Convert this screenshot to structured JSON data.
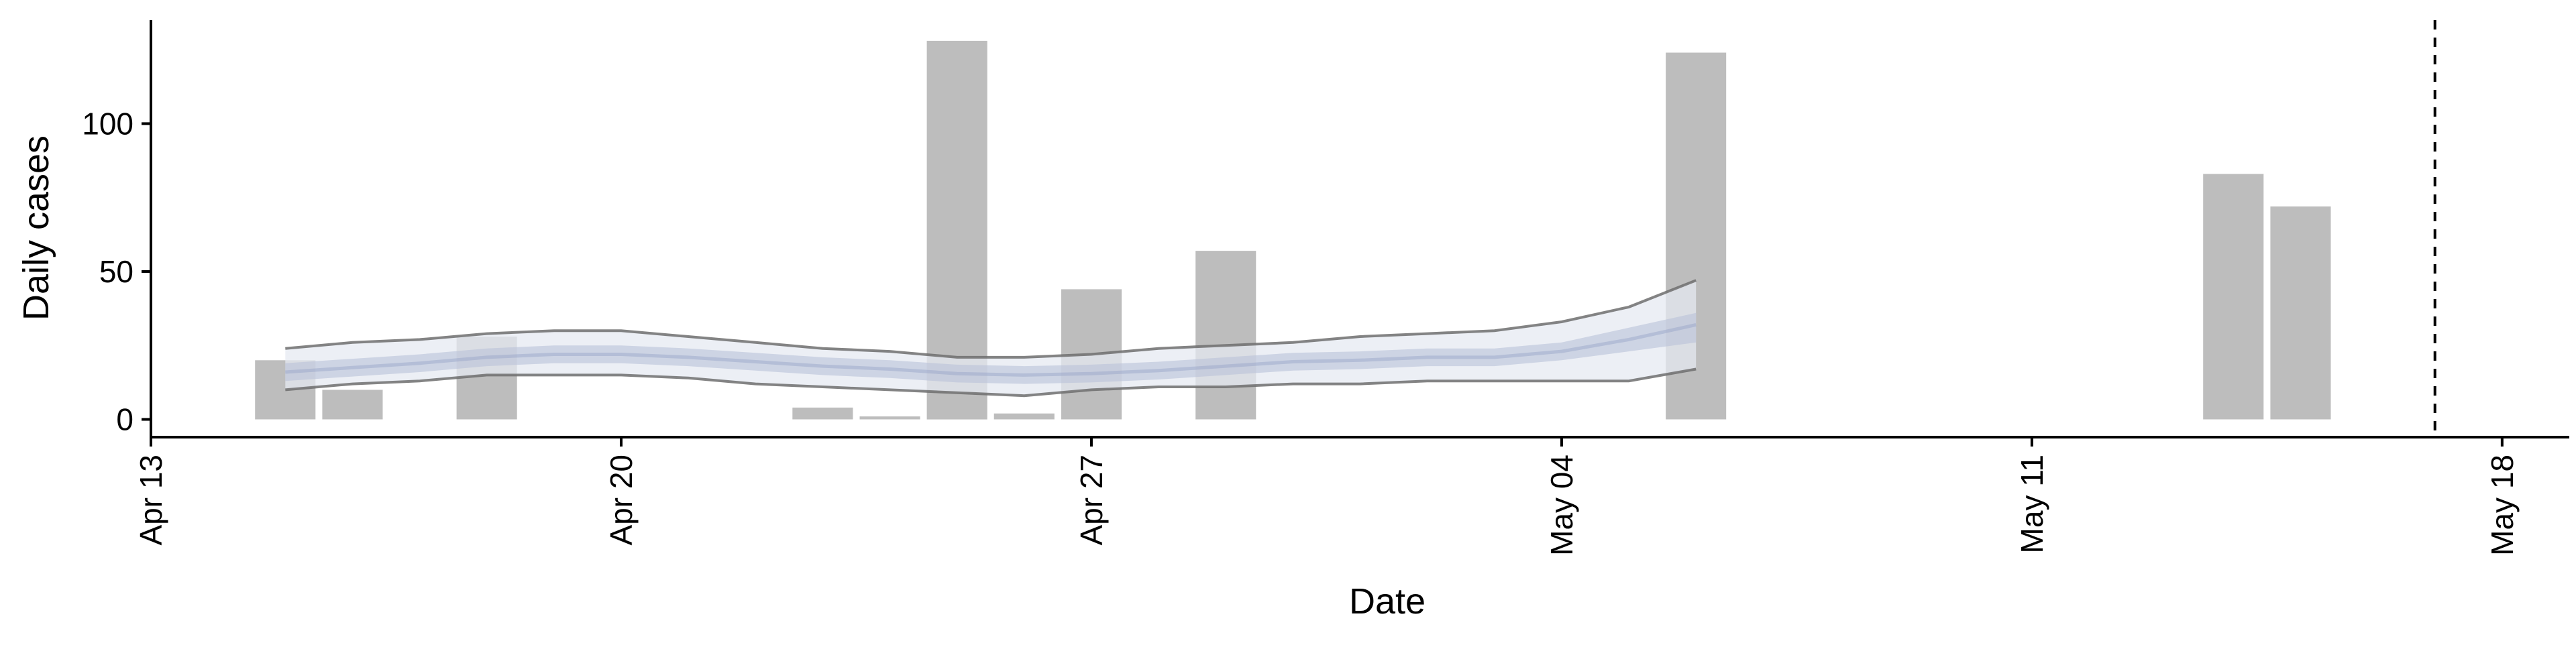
{
  "chart_data": {
    "type": "bar",
    "xlabel": "Date",
    "ylabel": "Daily cases",
    "x_axis": {
      "type": "date",
      "range": [
        "2020-04-13",
        "2020-05-19"
      ],
      "ticks": [
        {
          "date": "2020-04-13",
          "label": "Apr 13"
        },
        {
          "date": "2020-04-20",
          "label": "Apr 20"
        },
        {
          "date": "2020-04-27",
          "label": "Apr 27"
        },
        {
          "date": "2020-05-04",
          "label": "May 04"
        },
        {
          "date": "2020-05-11",
          "label": "May 11"
        },
        {
          "date": "2020-05-18",
          "label": "May 18"
        }
      ],
      "tick_label_rotation": "vertical"
    },
    "y_axis": {
      "range": [
        -6,
        135
      ],
      "ticks": [
        {
          "value": 0,
          "label": "0"
        },
        {
          "value": 50,
          "label": "50"
        },
        {
          "value": 100,
          "label": "100"
        }
      ]
    },
    "grid": false,
    "legend": "none",
    "colors": {
      "bars": "#bdbdbd",
      "band_outer_fill": "#e6e9f2",
      "band_inner_fill": "#b9c1d9",
      "band_outline": "#6e6e6e",
      "median_line": "#9ca8c9",
      "reference_line": "#000000"
    },
    "bars": [
      {
        "date": "2020-04-15",
        "value": 20
      },
      {
        "date": "2020-04-16",
        "value": 10
      },
      {
        "date": "2020-04-18",
        "value": 28
      },
      {
        "date": "2020-04-23",
        "value": 4
      },
      {
        "date": "2020-04-24",
        "value": 1
      },
      {
        "date": "2020-04-25",
        "value": 128
      },
      {
        "date": "2020-04-26",
        "value": 2
      },
      {
        "date": "2020-04-27",
        "value": 44
      },
      {
        "date": "2020-04-29",
        "value": 57
      },
      {
        "date": "2020-05-06",
        "value": 124
      },
      {
        "date": "2020-05-14",
        "value": 83
      },
      {
        "date": "2020-05-15",
        "value": 72
      }
    ],
    "estimate": {
      "dates": [
        "2020-04-15",
        "2020-04-16",
        "2020-04-17",
        "2020-04-18",
        "2020-04-19",
        "2020-04-20",
        "2020-04-21",
        "2020-04-22",
        "2020-04-23",
        "2020-04-24",
        "2020-04-25",
        "2020-04-26",
        "2020-04-27",
        "2020-04-28",
        "2020-04-29",
        "2020-04-30",
        "2020-05-01",
        "2020-05-02",
        "2020-05-03",
        "2020-05-04",
        "2020-05-05",
        "2020-05-06"
      ],
      "median": [
        16,
        17.5,
        19,
        21,
        22,
        22,
        21,
        19.5,
        18,
        17,
        15.5,
        15,
        15.5,
        16.5,
        18,
        19.5,
        20,
        21,
        21,
        23,
        27,
        32
      ],
      "inner_lower": [
        13,
        14.5,
        16,
        18,
        19,
        19,
        18,
        16.5,
        15,
        14,
        12.5,
        12,
        12.5,
        13.5,
        15,
        16.5,
        17,
        18,
        18,
        20,
        23,
        26
      ],
      "inner_upper": [
        19,
        20.5,
        22,
        24,
        25,
        25,
        24,
        22.5,
        21,
        20,
        18.5,
        18,
        18.5,
        19.5,
        21,
        22.5,
        23,
        24,
        24,
        26,
        31,
        36
      ],
      "outer_lower": [
        10,
        12,
        13,
        15,
        15,
        15,
        14,
        12,
        11,
        10,
        9,
        8,
        10,
        11,
        11,
        12,
        12,
        13,
        13,
        13,
        13,
        17
      ],
      "outer_upper": [
        24,
        26,
        27,
        29,
        30,
        30,
        28,
        26,
        24,
        23,
        21,
        21,
        22,
        24,
        25,
        26,
        28,
        29,
        30,
        33,
        38,
        47
      ]
    },
    "reference_line": {
      "date": "2020-05-17",
      "style": "dashed"
    }
  }
}
